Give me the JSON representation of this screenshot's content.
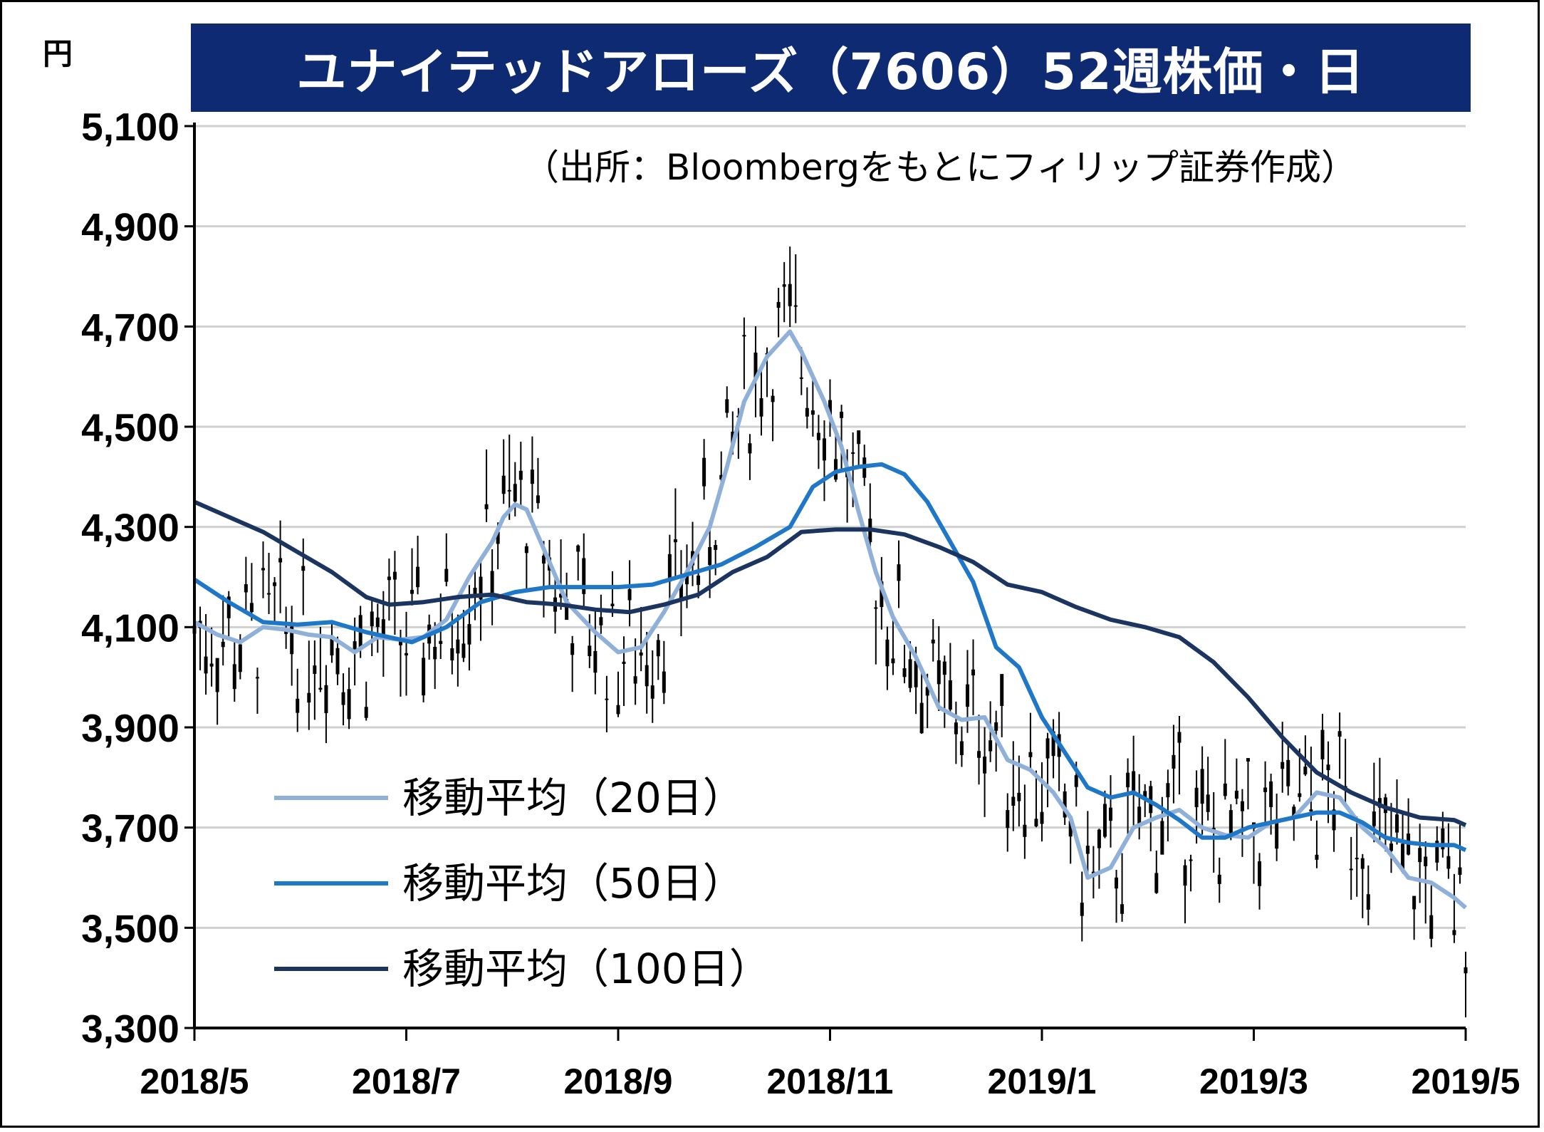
{
  "header": {
    "title": "ユナイテッドアローズ（7606）52週株価・日",
    "unit": "円",
    "source": "（出所：Bloombergをもとにフィリップ証券作成）"
  },
  "colors": {
    "title_bg": "#0e2a72",
    "ma20": "#8fb0d9",
    "ma50": "#1f77c8",
    "ma100": "#1b3560",
    "candles": "#000000",
    "grid": "#d0d0d0"
  },
  "chart_data": {
    "type": "line",
    "ylim": [
      3300,
      5100
    ],
    "yticks": [
      "5,100",
      "4,900",
      "4,700",
      "4,500",
      "4,300",
      "4,100",
      "3,900",
      "3,700",
      "3,500",
      "3,300"
    ],
    "ytick_values": [
      5100,
      4900,
      4700,
      4500,
      4300,
      4100,
      3900,
      3700,
      3500,
      3300
    ],
    "xticks": [
      "2018/5",
      "2018/7",
      "2018/9",
      "2018/11",
      "2019/1",
      "2019/3",
      "2019/5"
    ],
    "grid": true,
    "legend_position": "bottom-left",
    "series": [
      {
        "name": "移動平均（20日）",
        "color_key": "ma20",
        "values": [
          [
            0,
            4110
          ],
          [
            4,
            4085
          ],
          [
            8,
            4070
          ],
          [
            12,
            4100
          ],
          [
            16,
            4095
          ],
          [
            20,
            4085
          ],
          [
            24,
            4080
          ],
          [
            28,
            4050
          ],
          [
            32,
            4080
          ],
          [
            36,
            4075
          ],
          [
            40,
            4080
          ],
          [
            44,
            4115
          ],
          [
            48,
            4200
          ],
          [
            52,
            4270
          ],
          [
            54,
            4320
          ],
          [
            56,
            4345
          ],
          [
            58,
            4335
          ],
          [
            62,
            4230
          ],
          [
            65,
            4150
          ],
          [
            70,
            4090
          ],
          [
            74,
            4050
          ],
          [
            78,
            4060
          ],
          [
            82,
            4130
          ],
          [
            86,
            4210
          ],
          [
            90,
            4300
          ],
          [
            93,
            4420
          ],
          [
            96,
            4550
          ],
          [
            100,
            4640
          ],
          [
            104,
            4690
          ],
          [
            106,
            4650
          ],
          [
            108,
            4600
          ],
          [
            110,
            4550
          ],
          [
            113,
            4460
          ],
          [
            116,
            4330
          ],
          [
            119,
            4210
          ],
          [
            122,
            4120
          ],
          [
            126,
            4040
          ],
          [
            130,
            3940
          ],
          [
            134,
            3915
          ],
          [
            138,
            3920
          ],
          [
            142,
            3835
          ],
          [
            146,
            3815
          ],
          [
            150,
            3770
          ],
          [
            153,
            3720
          ],
          [
            156,
            3600
          ],
          [
            160,
            3620
          ],
          [
            164,
            3700
          ],
          [
            168,
            3720
          ],
          [
            172,
            3735
          ],
          [
            176,
            3700
          ],
          [
            180,
            3685
          ],
          [
            184,
            3680
          ],
          [
            188,
            3710
          ],
          [
            192,
            3720
          ],
          [
            196,
            3770
          ],
          [
            200,
            3760
          ],
          [
            204,
            3700
          ],
          [
            208,
            3660
          ],
          [
            212,
            3600
          ],
          [
            216,
            3590
          ],
          [
            220,
            3560
          ],
          [
            222,
            3540
          ]
        ]
      },
      {
        "name": "移動平均（50日）",
        "color_key": "ma50",
        "values": [
          [
            0,
            4195
          ],
          [
            6,
            4150
          ],
          [
            12,
            4110
          ],
          [
            18,
            4105
          ],
          [
            24,
            4110
          ],
          [
            30,
            4090
          ],
          [
            34,
            4080
          ],
          [
            38,
            4070
          ],
          [
            44,
            4100
          ],
          [
            50,
            4150
          ],
          [
            56,
            4170
          ],
          [
            62,
            4180
          ],
          [
            68,
            4180
          ],
          [
            74,
            4180
          ],
          [
            80,
            4185
          ],
          [
            86,
            4205
          ],
          [
            92,
            4225
          ],
          [
            98,
            4260
          ],
          [
            104,
            4300
          ],
          [
            108,
            4380
          ],
          [
            112,
            4410
          ],
          [
            116,
            4420
          ],
          [
            120,
            4425
          ],
          [
            124,
            4405
          ],
          [
            128,
            4350
          ],
          [
            132,
            4270
          ],
          [
            136,
            4190
          ],
          [
            140,
            4060
          ],
          [
            144,
            4020
          ],
          [
            148,
            3920
          ],
          [
            152,
            3850
          ],
          [
            156,
            3780
          ],
          [
            160,
            3760
          ],
          [
            164,
            3770
          ],
          [
            168,
            3745
          ],
          [
            172,
            3715
          ],
          [
            176,
            3680
          ],
          [
            180,
            3680
          ],
          [
            184,
            3700
          ],
          [
            188,
            3710
          ],
          [
            192,
            3720
          ],
          [
            196,
            3730
          ],
          [
            200,
            3730
          ],
          [
            204,
            3710
          ],
          [
            208,
            3680
          ],
          [
            212,
            3670
          ],
          [
            216,
            3665
          ],
          [
            220,
            3665
          ],
          [
            222,
            3655
          ]
        ]
      },
      {
        "name": "移動平均（100日）",
        "color_key": "ma100",
        "values": [
          [
            0,
            4350
          ],
          [
            6,
            4320
          ],
          [
            12,
            4290
          ],
          [
            18,
            4250
          ],
          [
            24,
            4210
          ],
          [
            30,
            4160
          ],
          [
            34,
            4145
          ],
          [
            40,
            4150
          ],
          [
            46,
            4160
          ],
          [
            52,
            4165
          ],
          [
            58,
            4150
          ],
          [
            64,
            4145
          ],
          [
            70,
            4135
          ],
          [
            76,
            4130
          ],
          [
            82,
            4145
          ],
          [
            88,
            4165
          ],
          [
            94,
            4210
          ],
          [
            100,
            4240
          ],
          [
            106,
            4290
          ],
          [
            112,
            4295
          ],
          [
            118,
            4295
          ],
          [
            124,
            4285
          ],
          [
            130,
            4260
          ],
          [
            136,
            4230
          ],
          [
            142,
            4185
          ],
          [
            148,
            4170
          ],
          [
            154,
            4140
          ],
          [
            160,
            4115
          ],
          [
            166,
            4100
          ],
          [
            172,
            4080
          ],
          [
            178,
            4030
          ],
          [
            184,
            3960
          ],
          [
            190,
            3880
          ],
          [
            196,
            3810
          ],
          [
            202,
            3770
          ],
          [
            208,
            3740
          ],
          [
            214,
            3720
          ],
          [
            220,
            3715
          ],
          [
            222,
            3705
          ]
        ]
      }
    ]
  }
}
